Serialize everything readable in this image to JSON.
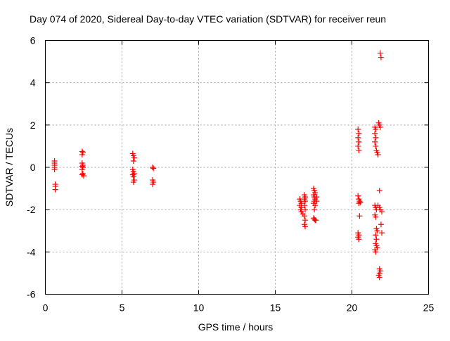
{
  "chart_data": {
    "type": "scatter",
    "title": "Day 074 of 2020, Sidereal Day-to-day VTEC variation (SDTVAR) for receiver reun",
    "xlabel": "GPS time / hours",
    "ylabel": "SDTVAR / TECUs",
    "xlim": [
      0,
      25
    ],
    "ylim": [
      -6,
      6
    ],
    "xticks": [
      0,
      5,
      10,
      15,
      20,
      25
    ],
    "yticks": [
      -6,
      -4,
      -2,
      0,
      2,
      4,
      6
    ],
    "grid": true,
    "marker": "+",
    "series_color": "#ff0000",
    "series": [
      {
        "name": "SDTVAR",
        "points": [
          [
            0.6,
            0.3
          ],
          [
            0.6,
            0.2
          ],
          [
            0.6,
            0.1
          ],
          [
            0.6,
            0.0
          ],
          [
            0.6,
            -0.1
          ],
          [
            0.65,
            -0.8
          ],
          [
            0.65,
            -0.9
          ],
          [
            0.65,
            -1.05
          ],
          [
            2.4,
            0.75
          ],
          [
            2.45,
            0.7
          ],
          [
            2.4,
            0.6
          ],
          [
            2.4,
            0.2
          ],
          [
            2.45,
            0.1
          ],
          [
            2.4,
            0.05
          ],
          [
            2.45,
            0.0
          ],
          [
            2.4,
            -0.1
          ],
          [
            2.45,
            -0.3
          ],
          [
            2.4,
            -0.35
          ],
          [
            2.5,
            -0.4
          ],
          [
            5.7,
            0.65
          ],
          [
            5.75,
            0.55
          ],
          [
            5.8,
            0.45
          ],
          [
            5.75,
            0.3
          ],
          [
            5.7,
            -0.1
          ],
          [
            5.75,
            -0.2
          ],
          [
            5.8,
            -0.3
          ],
          [
            5.7,
            -0.35
          ],
          [
            5.75,
            -0.45
          ],
          [
            5.8,
            -0.6
          ],
          [
            5.75,
            -0.7
          ],
          [
            7.0,
            0.0
          ],
          [
            7.05,
            -0.05
          ],
          [
            7.0,
            -0.6
          ],
          [
            7.05,
            -0.7
          ],
          [
            7.0,
            -0.8
          ],
          [
            16.6,
            -1.5
          ],
          [
            16.65,
            -1.6
          ],
          [
            16.7,
            -1.7
          ],
          [
            16.6,
            -1.8
          ],
          [
            16.7,
            -1.9
          ],
          [
            16.65,
            -2.0
          ],
          [
            16.7,
            -2.1
          ],
          [
            16.8,
            -2.2
          ],
          [
            16.9,
            -1.3
          ],
          [
            16.95,
            -1.4
          ],
          [
            16.9,
            -1.5
          ],
          [
            16.95,
            -1.6
          ],
          [
            16.9,
            -1.8
          ],
          [
            16.95,
            -2.0
          ],
          [
            16.9,
            -2.3
          ],
          [
            16.95,
            -2.5
          ],
          [
            16.9,
            -2.7
          ],
          [
            16.95,
            -2.8
          ],
          [
            17.5,
            -1.0
          ],
          [
            17.55,
            -1.1
          ],
          [
            17.6,
            -1.2
          ],
          [
            17.5,
            -1.3
          ],
          [
            17.55,
            -1.4
          ],
          [
            17.6,
            -1.5
          ],
          [
            17.55,
            -1.6
          ],
          [
            17.5,
            -1.7
          ],
          [
            17.6,
            -1.8
          ],
          [
            17.55,
            -2.0
          ],
          [
            17.7,
            -1.4
          ],
          [
            17.7,
            -1.6
          ],
          [
            17.5,
            -2.4
          ],
          [
            17.55,
            -2.45
          ],
          [
            17.6,
            -2.5
          ],
          [
            17.65,
            -2.5
          ],
          [
            20.4,
            1.8
          ],
          [
            20.45,
            1.6
          ],
          [
            20.4,
            1.4
          ],
          [
            20.45,
            1.2
          ],
          [
            20.4,
            1.0
          ],
          [
            20.45,
            0.8
          ],
          [
            20.4,
            -1.35
          ],
          [
            20.45,
            -1.5
          ],
          [
            20.5,
            -1.6
          ],
          [
            20.45,
            -1.7
          ],
          [
            20.55,
            -1.65
          ],
          [
            20.5,
            -2.3
          ],
          [
            20.4,
            -3.1
          ],
          [
            20.45,
            -3.2
          ],
          [
            20.4,
            -3.3
          ],
          [
            20.45,
            -3.4
          ],
          [
            21.5,
            1.9
          ],
          [
            21.55,
            1.8
          ],
          [
            21.5,
            1.6
          ],
          [
            21.55,
            1.4
          ],
          [
            21.5,
            1.2
          ],
          [
            21.55,
            1.0
          ],
          [
            21.6,
            0.8
          ],
          [
            21.65,
            0.7
          ],
          [
            21.7,
            0.6
          ],
          [
            21.75,
            2.1
          ],
          [
            21.8,
            2.0
          ],
          [
            21.85,
            1.9
          ],
          [
            21.85,
            5.4
          ],
          [
            21.9,
            5.2
          ],
          [
            21.8,
            -1.1
          ],
          [
            21.5,
            -1.8
          ],
          [
            21.55,
            -1.9
          ],
          [
            21.6,
            -2.0
          ],
          [
            21.7,
            -1.8
          ],
          [
            21.8,
            -1.9
          ],
          [
            21.85,
            -2.0
          ],
          [
            21.95,
            -2.1
          ],
          [
            21.5,
            -2.25
          ],
          [
            21.55,
            -2.35
          ],
          [
            21.9,
            -2.7
          ],
          [
            21.95,
            -3.1
          ],
          [
            21.6,
            -2.9
          ],
          [
            21.65,
            -3.0
          ],
          [
            21.55,
            -3.2
          ],
          [
            21.6,
            -3.4
          ],
          [
            21.55,
            -3.6
          ],
          [
            21.6,
            -3.7
          ],
          [
            21.65,
            -3.8
          ],
          [
            21.5,
            -3.9
          ],
          [
            21.55,
            -4.0
          ],
          [
            21.8,
            -4.8
          ],
          [
            21.85,
            -4.9
          ],
          [
            21.8,
            -5.0
          ],
          [
            21.75,
            -5.1
          ],
          [
            21.8,
            -5.2
          ]
        ]
      }
    ]
  }
}
